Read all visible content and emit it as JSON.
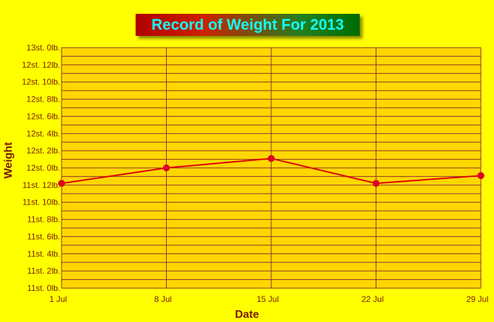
{
  "chart_data": {
    "type": "line",
    "title": "Record of Weight For 2013",
    "xlabel": "Date",
    "ylabel": "Weight",
    "x_ticks": [
      "1 Jul",
      "8 Jul",
      "15 Jul",
      "22 Jul",
      "29 Jul"
    ],
    "y_ticks": [
      "11st. 0lb.",
      "11st. 2lb.",
      "11st. 4lb.",
      "11st. 6lb.",
      "11st. 8lb.",
      "11st. 10lb.",
      "11st. 12lb.",
      "12st. 0lb.",
      "12st. 2lb.",
      "12st. 4lb.",
      "12st. 6lb.",
      "12st. 8lb.",
      "12st. 10lb.",
      "12st. 12lb.",
      "13st. 0lb."
    ],
    "ylim_lb": [
      154,
      182
    ],
    "grid": true,
    "series": [
      {
        "x": [
          "1 Jul",
          "8 Jul",
          "15 Jul",
          "22 Jul",
          "29 Jul"
        ],
        "values_lb": [
          166.2,
          168.0,
          169.1,
          166.2,
          167.1
        ]
      }
    ],
    "colors": {
      "background": "#ffff00",
      "plot_area": "#ffd700",
      "grid": "#8b2d2d",
      "line": "#dd0000",
      "marker": "#dd0022",
      "axis_text": "#7a1a00",
      "title_text": "#11ffff"
    }
  }
}
